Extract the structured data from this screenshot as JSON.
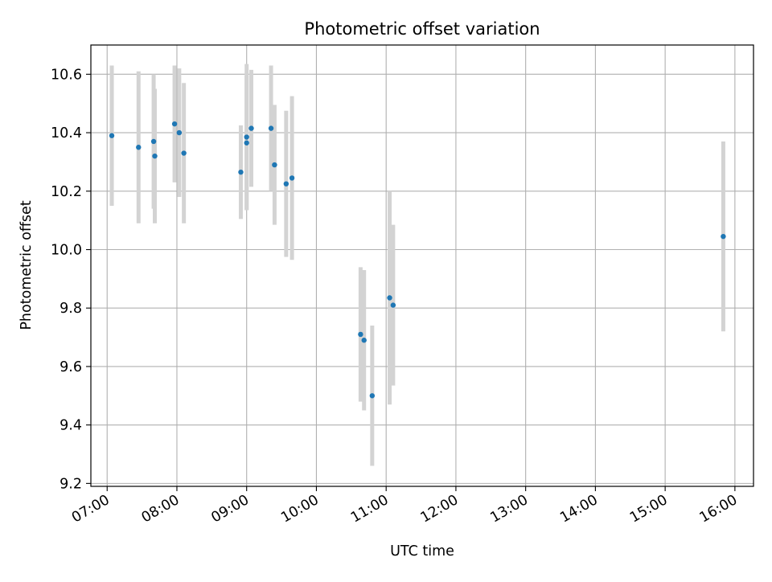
{
  "chart_data": {
    "type": "scatter",
    "title": "Photometric offset variation",
    "xlabel": "UTC time",
    "ylabel": "Photometric offset",
    "x_unit": "UTC hours",
    "xlim": [
      "06:46",
      "16:16"
    ],
    "ylim": [
      9.19,
      10.7
    ],
    "x_ticks": [
      "07:00",
      "08:00",
      "09:00",
      "10:00",
      "11:00",
      "12:00",
      "13:00",
      "14:00",
      "15:00",
      "16:00"
    ],
    "y_ticks": [
      "9.2",
      "9.4",
      "9.6",
      "9.8",
      "10.0",
      "10.2",
      "10.4",
      "10.6"
    ],
    "grid": true,
    "point_color": "#1f77b4",
    "errorbar_color": "#d3d3d3",
    "points": [
      {
        "time": "07:04",
        "y": 10.39,
        "err": 0.24
      },
      {
        "time": "07:27",
        "y": 10.35,
        "err": 0.26
      },
      {
        "time": "07:40",
        "y": 10.37,
        "err": 0.23
      },
      {
        "time": "07:41",
        "y": 10.32,
        "err": 0.23
      },
      {
        "time": "07:58",
        "y": 10.43,
        "err": 0.2
      },
      {
        "time": "08:02",
        "y": 10.4,
        "err": 0.22
      },
      {
        "time": "08:06",
        "y": 10.33,
        "err": 0.24
      },
      {
        "time": "08:55",
        "y": 10.265,
        "err": 0.16
      },
      {
        "time": "09:00",
        "y": 10.385,
        "err": 0.25
      },
      {
        "time": "09:00",
        "y": 10.365,
        "err": 0.23
      },
      {
        "time": "09:04",
        "y": 10.415,
        "err": 0.2
      },
      {
        "time": "09:21",
        "y": 10.415,
        "err": 0.215
      },
      {
        "time": "09:24",
        "y": 10.29,
        "err": 0.205
      },
      {
        "time": "09:34",
        "y": 10.225,
        "err": 0.25
      },
      {
        "time": "09:39",
        "y": 10.245,
        "err": 0.28
      },
      {
        "time": "10:38",
        "y": 9.71,
        "err": 0.23
      },
      {
        "time": "10:41",
        "y": 9.69,
        "err": 0.24
      },
      {
        "time": "10:48",
        "y": 9.5,
        "err": 0.24
      },
      {
        "time": "11:03",
        "y": 9.835,
        "err": 0.365
      },
      {
        "time": "11:06",
        "y": 9.81,
        "err": 0.275
      },
      {
        "time": "15:50",
        "y": 10.045,
        "err": 0.325
      }
    ]
  }
}
